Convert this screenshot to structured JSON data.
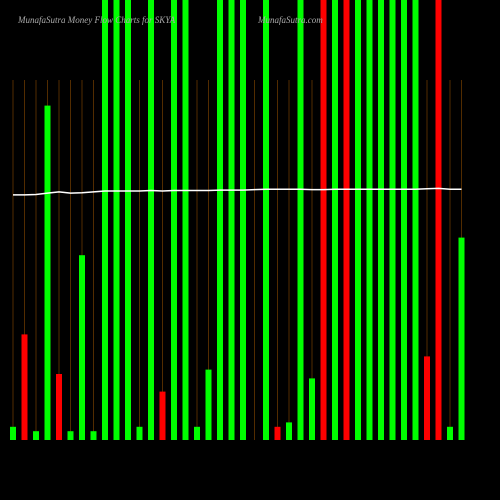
{
  "chart_data": {
    "type": "bar",
    "title": "MunafaSutra  Money Flow  Charts for SKYA",
    "subtitle": "MunafaSutra.com",
    "categories": [
      null,
      null,
      null,
      null,
      null,
      null,
      null,
      null,
      null,
      null,
      null,
      null,
      null,
      null,
      null,
      null,
      null,
      null,
      null,
      null,
      null,
      null,
      null,
      null,
      null,
      null,
      null,
      null,
      null,
      null,
      null,
      null,
      null,
      null,
      null,
      null,
      null,
      null,
      null,
      null
    ],
    "values": [
      3,
      24,
      2,
      76,
      15,
      2,
      42,
      2,
      100,
      100,
      100,
      3,
      100,
      11,
      100,
      100,
      3,
      16,
      100,
      100,
      100,
      0,
      100,
      3,
      4,
      100,
      14,
      100,
      100,
      100,
      100,
      100,
      100,
      100,
      100,
      100,
      19,
      100,
      3,
      46
    ],
    "colors": [
      "#00ff00",
      "#ff0000",
      "#00ff00",
      "#00ff00",
      "#ff0000",
      "#00ff00",
      "#00ff00",
      "#00ff00",
      "#00ff00",
      "#00ff00",
      "#00ff00",
      "#00ff00",
      "#00ff00",
      "#ff0000",
      "#00ff00",
      "#00ff00",
      "#00ff00",
      "#00ff00",
      "#00ff00",
      "#00ff00",
      "#00ff00",
      "#00ff00",
      "#00ff00",
      "#ff0000",
      "#00ff00",
      "#00ff00",
      "#00ff00",
      "#ff0000",
      "#00ff00",
      "#ff0000",
      "#00ff00",
      "#00ff00",
      "#00ff00",
      "#00ff00",
      "#00ff00",
      "#00ff00",
      "#ff0000",
      "#ff0000",
      "#00ff00",
      "#00ff00"
    ],
    "line": {
      "color": "#ffffff",
      "values": [
        55.7,
        55.7,
        55.8,
        56.1,
        56.4,
        56.1,
        56.2,
        56.4,
        56.6,
        56.6,
        56.6,
        56.6,
        56.7,
        56.6,
        56.7,
        56.7,
        56.7,
        56.7,
        56.8,
        56.8,
        56.8,
        56.9,
        57.0,
        57.0,
        57.0,
        57.0,
        56.9,
        56.9,
        57.0,
        57.0,
        57.0,
        57.0,
        57.0,
        57.0,
        57.0,
        57.0,
        57.1,
        57.2,
        57.0,
        57.0
      ]
    },
    "ylim": [
      0,
      100
    ]
  }
}
